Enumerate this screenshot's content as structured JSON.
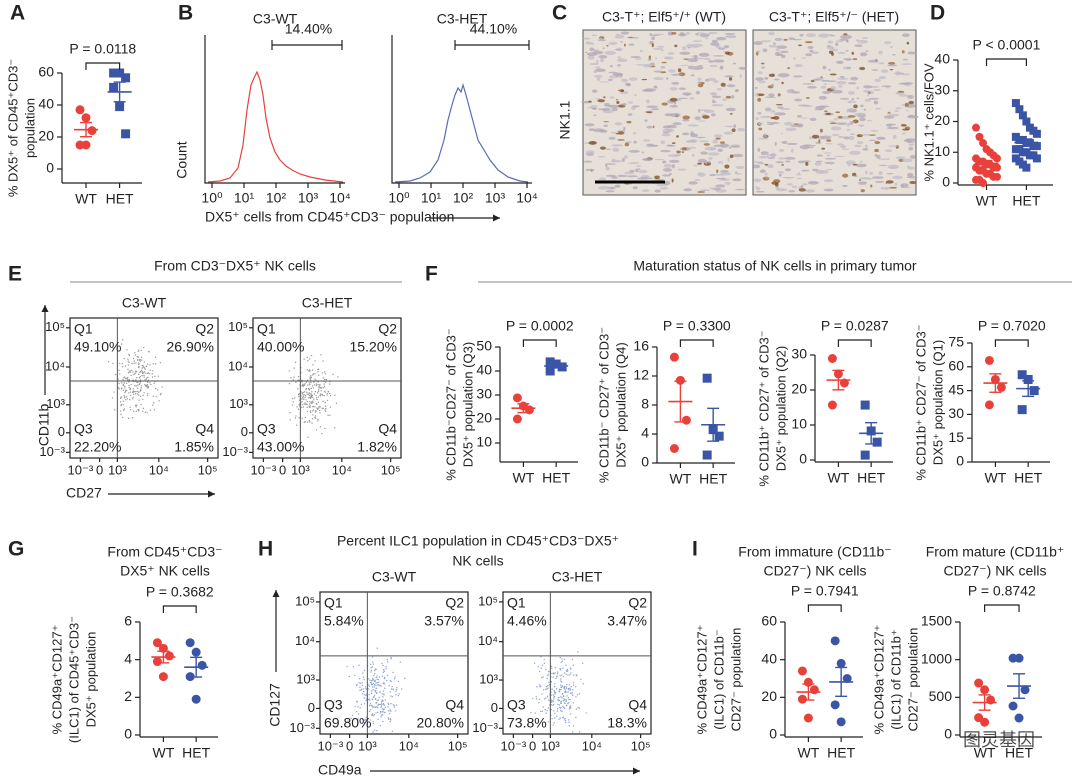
{
  "A": {
    "letter": "A",
    "p_label": "P = 0.0118",
    "ylabel": [
      "% DX5⁺ of CD45⁺CD3⁻",
      "population"
    ],
    "categories": [
      "WT",
      "HET"
    ],
    "ylim": [
      0,
      60
    ],
    "yticks": [
      0,
      20,
      40,
      60
    ],
    "groups": [
      {
        "color": "#e8413c",
        "marker": "circle",
        "values": [
          37,
          32,
          24,
          15,
          15
        ]
      },
      {
        "color": "#3b55a6",
        "marker": "square",
        "values": [
          60,
          60,
          57,
          51,
          39,
          22
        ]
      }
    ]
  },
  "B": {
    "letter": "B",
    "ylabel": "Count",
    "xlabel": "DX5⁺ cells from CD45⁺CD3⁻ population",
    "xticks": [
      "10⁰",
      "10¹",
      "10²",
      "10³",
      "10⁴"
    ],
    "plots": [
      {
        "title": "C3-WT",
        "gate": "14.40%",
        "color": "#e8413c"
      },
      {
        "title": "C3-HET",
        "gate": "44.10%",
        "color": "#5b6bb5"
      }
    ]
  },
  "C": {
    "letter": "C",
    "ylabel": "NK1.1",
    "images": [
      {
        "title": "C3-T⁺; Elf5⁺/⁺ (WT)"
      },
      {
        "title": "C3-T⁺; Elf5⁺/⁻ (HET)"
      }
    ]
  },
  "D": {
    "letter": "D",
    "p_label": "P < 0.0001",
    "ylabel": [
      "% NK1.1⁺ cells/FOV"
    ],
    "categories": [
      "WT",
      "HET"
    ],
    "ylim": [
      0,
      40
    ],
    "yticks": [
      0,
      10,
      20,
      30,
      40
    ],
    "groups": [
      {
        "color": "#e8413c",
        "marker": "circle",
        "values": [
          18,
          15,
          13,
          11,
          10,
          9,
          8,
          8,
          7,
          7,
          6,
          6,
          5,
          5,
          5,
          4,
          4,
          3,
          3,
          2,
          2,
          1,
          1,
          0
        ]
      },
      {
        "color": "#3b55a6",
        "marker": "square",
        "values": [
          26,
          24,
          22,
          20,
          18,
          17,
          16,
          15,
          14,
          14,
          13,
          13,
          12,
          12,
          11,
          11,
          10,
          10,
          9,
          9,
          8,
          8,
          7,
          6,
          5
        ]
      }
    ]
  },
  "E": {
    "letter": "E",
    "title": "From CD3⁻DX5⁺ NK cells",
    "ylabel": "CD11b",
    "xlabel": "CD27",
    "xticks": [
      "10⁻³",
      "0",
      "10³",
      "10⁴",
      "10⁵"
    ],
    "yticks": [
      "10⁵",
      "10⁴",
      "10³",
      "0",
      "10⁻³"
    ],
    "highlight": "Q3",
    "plots": [
      {
        "title": "C3-WT",
        "quadrants": [
          {
            "name": "Q1",
            "percent": "49.10%"
          },
          {
            "name": "Q2",
            "percent": "26.90%"
          },
          {
            "name": "Q3",
            "percent": "22.20%"
          },
          {
            "name": "Q4",
            "percent": "1.85%"
          }
        ]
      },
      {
        "title": "C3-HET",
        "quadrants": [
          {
            "name": "Q1",
            "percent": "40.00%"
          },
          {
            "name": "Q2",
            "percent": "15.20%"
          },
          {
            "name": "Q3",
            "percent": "43.00%"
          },
          {
            "name": "Q4",
            "percent": "1.82%"
          }
        ]
      }
    ]
  },
  "F": {
    "letter": "F",
    "title": "Maturation status of NK cells in primary tumor",
    "plots": [
      {
        "p_label": "P = 0.0002",
        "ylabel": [
          "% CD11b⁻CD27⁻ of CD3⁻",
          "DX5⁺ population (Q3)"
        ],
        "categories": [
          "WT",
          "HET"
        ],
        "ylim": [
          10,
          50
        ],
        "yticks": [
          10,
          20,
          30,
          40,
          50
        ],
        "groups": [
          {
            "color": "#e8413c",
            "marker": "circle",
            "values": [
              28.8,
              25.4,
              23.8,
              20
            ]
          },
          {
            "color": "#3b55a6",
            "marker": "square",
            "values": [
              43.8,
              42.9,
              41.7,
              40
            ]
          }
        ]
      },
      {
        "p_label": "P = 0.3300",
        "ylabel": [
          "% CD11b⁻ CD27⁺ of CD3⁻",
          "DX5⁺ population (Q4)"
        ],
        "categories": [
          "WT",
          "HET"
        ],
        "ylim": [
          0,
          16
        ],
        "yticks": [
          0,
          4,
          8,
          12,
          16
        ],
        "groups": [
          {
            "color": "#e8413c",
            "marker": "circle",
            "values": [
              14.6,
              11.4,
              5.9,
              2
            ]
          },
          {
            "color": "#3b55a6",
            "marker": "square",
            "values": [
              11.7,
              4.6,
              3.7,
              1.1
            ]
          }
        ]
      },
      {
        "p_label": "P = 0.0287",
        "ylabel": [
          "% CD11b⁺ CD27⁺ of CD3⁻",
          "DX5⁺ population (Q2)"
        ],
        "categories": [
          "WT",
          "HET"
        ],
        "ylim": [
          0,
          30
        ],
        "yticks": [
          0,
          10,
          20,
          30
        ],
        "groups": [
          {
            "color": "#e8413c",
            "marker": "circle",
            "values": [
              29,
              24.6,
              22,
              15.7
            ]
          },
          {
            "color": "#3b55a6",
            "marker": "square",
            "values": [
              15.7,
              8.3,
              5.1,
              1.4
            ]
          }
        ]
      },
      {
        "p_label": "P = 0.7020",
        "ylabel": [
          "% CD11b⁺ CD27⁻ of CD3⁻",
          "DX5⁺ population (Q1)"
        ],
        "categories": [
          "WT",
          "HET"
        ],
        "ylim": [
          0,
          75
        ],
        "yticks": [
          0,
          15,
          30,
          45,
          60,
          75
        ],
        "groups": [
          {
            "color": "#e8413c",
            "marker": "circle",
            "values": [
              64,
              52,
              47,
              36
            ]
          },
          {
            "color": "#3b55a6",
            "marker": "square",
            "values": [
              55,
              52,
              45,
              33
            ]
          }
        ]
      }
    ]
  },
  "G": {
    "letter": "G",
    "title": [
      "From CD45⁺CD3⁻",
      "DX5⁺ NK cells"
    ],
    "p_label": "P = 0.3682",
    "ylabel": [
      "% CD49a⁺CD127⁺",
      "(ILC1) of CD45⁺CD3⁻",
      "DX5⁺ population"
    ],
    "categories": [
      "WT",
      "HET"
    ],
    "ylim": [
      0,
      6
    ],
    "yticks": [
      0,
      2,
      4,
      6
    ],
    "groups": [
      {
        "color": "#e8413c",
        "marker": "circle",
        "values": [
          4.9,
          4.6,
          4.2,
          3.9,
          3.1
        ]
      },
      {
        "color": "#3b55a6",
        "marker": "circle",
        "values": [
          4.9,
          4.4,
          3.7,
          3.1,
          1.9
        ]
      }
    ]
  },
  "H": {
    "letter": "H",
    "title": [
      "Percent ILC1 population in CD45⁺CD3⁻DX5⁺",
      "NK cells"
    ],
    "ylabel": "CD127",
    "xlabel": "CD49a",
    "xticks": [
      "10⁻³",
      "0",
      "10³",
      "10⁴",
      "10⁵"
    ],
    "yticks": [
      "10⁵",
      "10⁴",
      "10³",
      "0",
      "10⁻³"
    ],
    "highlight": "Q2",
    "plots": [
      {
        "title": "C3-WT",
        "quadrants": [
          {
            "name": "Q1",
            "percent": "5.84%"
          },
          {
            "name": "Q2",
            "percent": "3.57%"
          },
          {
            "name": "Q3",
            "percent": "69.80%"
          },
          {
            "name": "Q4",
            "percent": "20.80%"
          }
        ]
      },
      {
        "title": "C3-HET",
        "quadrants": [
          {
            "name": "Q1",
            "percent": "4.46%"
          },
          {
            "name": "Q2",
            "percent": "3.47%"
          },
          {
            "name": "Q3",
            "percent": "73.8%"
          },
          {
            "name": "Q4",
            "percent": "18.3%"
          }
        ]
      }
    ]
  },
  "I": {
    "letter": "I",
    "plots": [
      {
        "title": [
          "From immature (CD11b⁻",
          "CD27⁻) NK cells"
        ],
        "p_label": "P = 0.7941",
        "ylabel": [
          "% CD49a⁺CD127⁺",
          "(ILC1) of CD11b⁻",
          "CD27⁻ population"
        ],
        "categories": [
          "WT",
          "HET"
        ],
        "ylim": [
          0,
          60
        ],
        "yticks": [
          0,
          20,
          40,
          60
        ],
        "groups": [
          {
            "color": "#e8413c",
            "marker": "circle",
            "values": [
              34,
              28,
              24,
              19,
              9
            ]
          },
          {
            "color": "#3b55a6",
            "marker": "circle",
            "values": [
              50,
              38,
              30,
              16,
              7
            ]
          }
        ]
      },
      {
        "title": [
          "From mature (CD11b⁺",
          "CD27⁻) NK cells"
        ],
        "p_label": "P = 0.8742",
        "ylabel": [
          "% CD49a⁺CD127⁺",
          "(ILC1) of CD11b⁺",
          "CD27⁻ population"
        ],
        "categories": [
          "WT",
          "HET"
        ],
        "ylim": [
          0,
          1500
        ],
        "yticks": [
          0,
          500,
          1000,
          1500
        ],
        "groups": [
          {
            "color": "#e8413c",
            "marker": "circle",
            "values": [
              690,
              600,
              465,
              230,
              170
            ]
          },
          {
            "color": "#3b55a6",
            "marker": "circle",
            "values": [
              1020,
              1020,
              600,
              385,
              225
            ]
          }
        ]
      }
    ]
  },
  "watermark": "图灵基因"
}
